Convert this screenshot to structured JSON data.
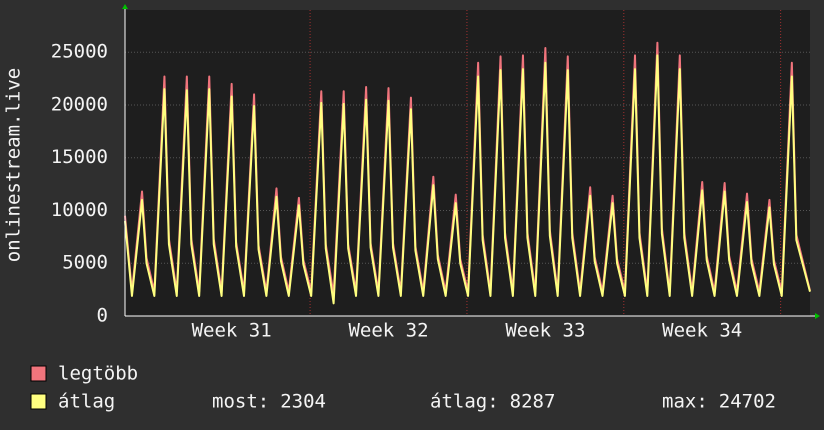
{
  "chart_data": {
    "type": "line",
    "y_label": "onlinestream.live",
    "x": [
      -0.76,
      -0.45,
      0,
      0.2,
      0.55,
      1,
      1.2,
      1.55,
      2,
      2.2,
      2.55,
      3,
      3.2,
      3.55,
      4,
      4.2,
      4.55,
      5,
      5.2,
      5.55,
      6,
      6.2,
      6.55,
      7,
      7.2,
      7.55,
      8,
      8.2,
      8.55,
      9,
      9.2,
      9.55,
      10,
      10.2,
      10.55,
      11,
      11.2,
      11.55,
      12,
      12.2,
      12.55,
      13,
      13.2,
      13.55,
      14,
      14.2,
      14.55,
      15,
      15.2,
      15.55,
      16,
      16.2,
      16.55,
      17,
      17.2,
      17.55,
      18,
      18.2,
      18.55,
      19,
      19.2,
      19.55,
      20,
      20.2,
      20.55,
      21,
      21.2,
      21.55,
      22,
      22.2,
      22.55,
      23,
      23.2,
      23.55,
      24,
      24.2,
      24.55,
      25,
      25.2,
      25.55,
      26,
      26.2,
      26.55,
      27,
      27.2,
      27.55,
      28,
      28.2,
      28.55,
      29,
      29.2,
      29.81
    ],
    "series": [
      {
        "name": "legtöbb",
        "color": "#f0747c",
        "values": [
          9500,
          2300,
          11800,
          5500,
          2300,
          22700,
          7300,
          2300,
          22700,
          7300,
          2300,
          22700,
          7300,
          2300,
          22000,
          7000,
          2300,
          21000,
          6700,
          2300,
          12100,
          5600,
          2300,
          11200,
          5300,
          2300,
          21300,
          6800,
          2000,
          21300,
          6800,
          2300,
          21700,
          6900,
          2300,
          21600,
          6900,
          2300,
          20700,
          6600,
          2300,
          13200,
          5800,
          2300,
          11500,
          5400,
          2300,
          24000,
          7700,
          2300,
          24600,
          7900,
          2300,
          24700,
          7900,
          2300,
          25400,
          8100,
          2300,
          24600,
          7900,
          2300,
          12200,
          5600,
          2300,
          11400,
          5400,
          2300,
          24700,
          7900,
          2300,
          25900,
          8300,
          2300,
          24700,
          7900,
          2300,
          12700,
          5700,
          2300,
          12600,
          5700,
          2300,
          11600,
          5400,
          2300,
          11000,
          5300,
          2300,
          24000,
          7700,
          2400
        ]
      },
      {
        "name": "átlag",
        "color": "#ffff80",
        "values": [
          9000,
          1900,
          11000,
          5000,
          1900,
          21500,
          6800,
          1900,
          21400,
          6800,
          1900,
          21500,
          6800,
          1900,
          20800,
          6600,
          1900,
          19900,
          6300,
          1900,
          11300,
          5200,
          1900,
          10500,
          4900,
          1900,
          20200,
          6400,
          1200,
          20100,
          6400,
          1900,
          20500,
          6500,
          1900,
          20400,
          6500,
          1900,
          19600,
          6200,
          1900,
          12400,
          5400,
          1900,
          10700,
          5000,
          1900,
          22700,
          7200,
          1900,
          23300,
          7400,
          1900,
          23400,
          7400,
          1900,
          24000,
          7600,
          1900,
          23300,
          7400,
          1900,
          11400,
          5200,
          1900,
          10700,
          5000,
          1900,
          23400,
          7400,
          1900,
          24702,
          7800,
          1900,
          23400,
          7400,
          1900,
          11900,
          5300,
          1900,
          11800,
          5300,
          1900,
          10800,
          5000,
          1900,
          10300,
          4900,
          1900,
          22700,
          7200,
          2304
        ],
        "stats": [
          {
            "label": "most:",
            "value": 2304
          },
          {
            "label": "átlag:",
            "value": 8287
          },
          {
            "label": "max:",
            "value": 24702
          }
        ]
      }
    ],
    "xlim": [
      -0.76,
      29.81
    ],
    "xticks": [
      {
        "value": 4,
        "label": "Week 31"
      },
      {
        "value": 11,
        "label": "Week 32"
      },
      {
        "value": 18,
        "label": "Week 33"
      },
      {
        "value": 25,
        "label": "Week 34"
      }
    ],
    "week_lines": [
      7.5,
      14.5,
      21.5,
      28.5
    ],
    "ylim": [
      0,
      29000
    ],
    "yticks": [
      0,
      5000,
      10000,
      15000,
      20000,
      25000
    ],
    "grid": true
  }
}
